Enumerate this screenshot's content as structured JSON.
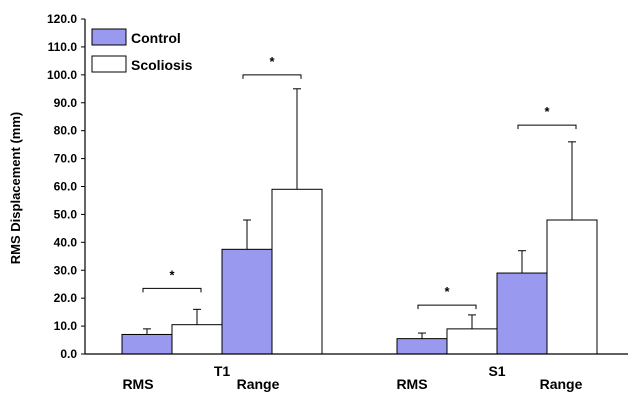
{
  "chart_data": {
    "type": "bar",
    "ylabel": "RMS Displacement (mm)",
    "ylim": [
      0,
      120
    ],
    "y_ticks": [
      "0.0",
      "10.0",
      "20.0",
      "30.0",
      "40.0",
      "50.0",
      "60.0",
      "70.0",
      "80.0",
      "90.0",
      "100.0",
      "110.0",
      "120.0"
    ],
    "grid": false,
    "legend_position": "top-left",
    "groups": [
      {
        "label": "T1",
        "subgroups": [
          "RMS",
          "Range"
        ]
      },
      {
        "label": "S1",
        "subgroups": [
          "RMS",
          "Range"
        ]
      }
    ],
    "categories": [
      "T1 RMS",
      "T1 Range",
      "S1 RMS",
      "S1 Range"
    ],
    "category_labels": [
      "RMS",
      "Range",
      "RMS",
      "Range"
    ],
    "series": [
      {
        "name": "Control",
        "color": "#9999f0",
        "values": [
          7.0,
          37.5,
          5.5,
          29.0
        ],
        "error_plus": [
          2.0,
          10.5,
          2.0,
          8.0
        ]
      },
      {
        "name": "Scoliosis",
        "color": "#ffffff",
        "values": [
          10.5,
          59.0,
          9.0,
          48.0
        ],
        "error_plus": [
          5.5,
          36.0,
          5.0,
          28.0
        ]
      }
    ],
    "significance": [
      {
        "category": "T1 RMS",
        "label": "*",
        "bracket_y": 23.5
      },
      {
        "category": "T1 Range",
        "label": "*",
        "bracket_y": 100.0
      },
      {
        "category": "S1 RMS",
        "label": "*",
        "bracket_y": 17.5
      },
      {
        "category": "S1 Range",
        "label": "*",
        "bracket_y": 82.0
      }
    ]
  }
}
